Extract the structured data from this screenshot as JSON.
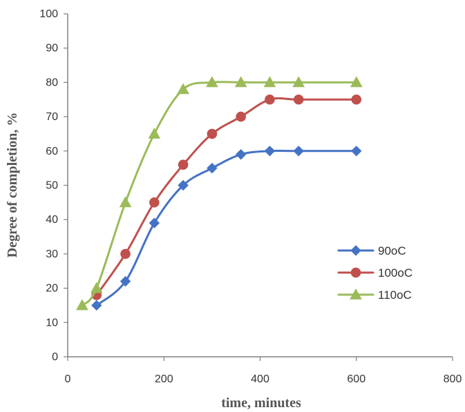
{
  "chart_data": {
    "type": "line",
    "title": "",
    "xlabel": "time, minutes",
    "ylabel": "Degree of  completion, %",
    "xlim": [
      0,
      800
    ],
    "ylim": [
      0,
      100
    ],
    "x_ticks": [
      0,
      200,
      400,
      600,
      800
    ],
    "y_ticks": [
      0,
      10,
      20,
      30,
      40,
      50,
      60,
      70,
      80,
      90,
      100
    ],
    "x_tick_labels": [
      "0",
      "200",
      "400",
      "600",
      "800"
    ],
    "y_tick_labels": [
      "0",
      "10",
      "20",
      "30",
      "40",
      "50",
      "60",
      "70",
      "80",
      "90",
      "100"
    ],
    "grid": false,
    "legend_position": "right",
    "series": [
      {
        "name": "90oC",
        "color": "#4472C4",
        "marker": "diamond",
        "x": [
          60,
          120,
          180,
          240,
          300,
          360,
          420,
          480,
          600
        ],
        "y": [
          15,
          22,
          39,
          50,
          55,
          59,
          60,
          60,
          60
        ]
      },
      {
        "name": "100oC",
        "color": "#C0504D",
        "marker": "circle",
        "x": [
          60,
          120,
          180,
          240,
          300,
          360,
          420,
          480,
          600
        ],
        "y": [
          18,
          30,
          45,
          56,
          65,
          70,
          75,
          75,
          75
        ]
      },
      {
        "name": "110oC",
        "color": "#9BBB59",
        "marker": "triangle",
        "x": [
          30,
          60,
          120,
          180,
          240,
          300,
          360,
          420,
          480,
          600
        ],
        "y": [
          15,
          20,
          45,
          65,
          78,
          80,
          80,
          80,
          80,
          80
        ]
      }
    ]
  }
}
